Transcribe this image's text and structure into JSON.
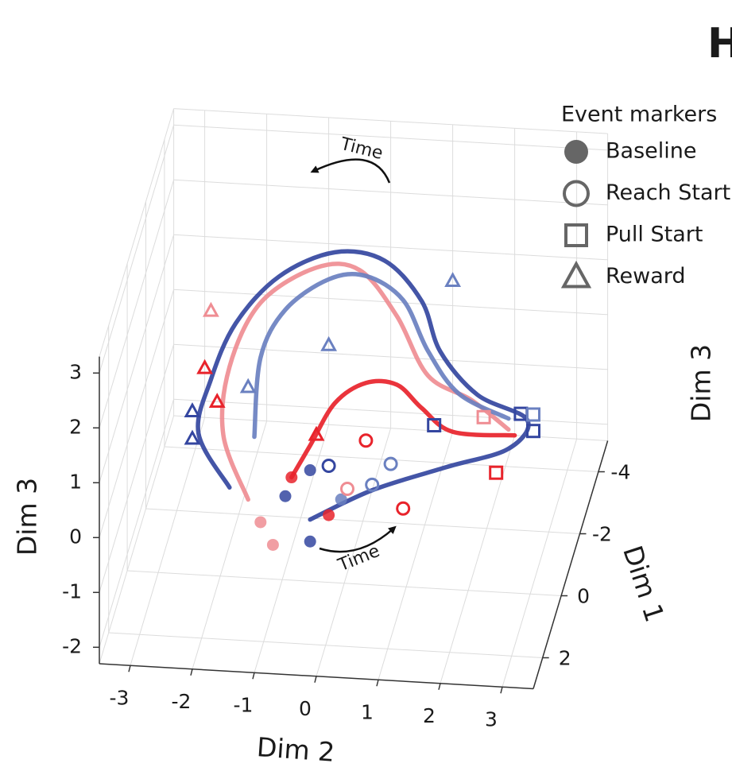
{
  "chart_data": {
    "type": "line3d",
    "xlabel": "Dim 2",
    "ylabel": "Dim 1",
    "zlabel": "Dim 3",
    "xlim": [
      -3.5,
      3.5
    ],
    "ylim": [
      -5,
      3
    ],
    "zlim": [
      -2.3,
      3.3
    ],
    "xticks": [
      -3,
      -2,
      -1,
      0,
      1,
      2,
      3
    ],
    "yticks": [
      -4,
      -2,
      0,
      2
    ],
    "zticks": [
      -2,
      -1,
      0,
      1,
      2,
      3
    ],
    "grid": true,
    "series": [
      {
        "color": "#ef8d93",
        "x": [
          -1.4,
          -2.1,
          -2.3,
          -1.8,
          -0.9,
          -0.2,
          0.4,
          1.2,
          1.9,
          2.5
        ],
        "y": [
          1,
          -1,
          -3,
          -3,
          -3,
          -3,
          -3,
          -1,
          -1,
          -1
        ],
        "z": [
          -0.3,
          -0.3,
          -0.2,
          1.0,
          1.7,
          1.7,
          0.9,
          1.0,
          0.6,
          0.1
        ]
      },
      {
        "color": "#6a80c0",
        "x": [
          -1.6,
          -1.8,
          -1.4,
          -0.7,
          -0.1,
          0.5,
          0.9,
          1.7,
          2.5
        ],
        "y": [
          -1,
          -3,
          -3,
          -3,
          -3,
          -3,
          -3,
          -1,
          -1
        ],
        "z": [
          -0.3,
          0.0,
          0.9,
          1.5,
          1.6,
          1.2,
          0.3,
          0.7,
          0.3
        ]
      },
      {
        "color": "#3446a0",
        "x": [
          -0.4,
          0.6,
          1.8,
          2.8,
          2.8,
          2.0,
          1.1,
          0.8,
          0.2,
          -0.6,
          -1.5,
          -2.2,
          -2.3,
          -2.5,
          -1.7
        ],
        "y": [
          1,
          1,
          1,
          1,
          -1,
          -1,
          -3,
          -3,
          -3,
          -3,
          -3,
          -3,
          -1,
          -1,
          1
        ],
        "z": [
          -0.6,
          0.0,
          0.5,
          0.9,
          0.3,
          0.7,
          0.3,
          1.2,
          1.9,
          2.0,
          1.5,
          0.6,
          0.7,
          -0.3,
          -0.1
        ]
      },
      {
        "color": "#e8232b",
        "x": [
          -1.0,
          -0.7,
          -0.3,
          0.2,
          0.7,
          1.1,
          1.6,
          2.6
        ],
        "y": [
          -1,
          -1,
          -1,
          -1,
          -1,
          -1,
          -1,
          -1
        ],
        "z": [
          -1.0,
          -0.4,
          0.4,
          0.8,
          0.8,
          0.4,
          0.0,
          0.0
        ]
      }
    ],
    "legend": {
      "title": "Event markers",
      "position": "top-right"
    },
    "events": [
      {
        "name": "Baseline",
        "shape": "filled-circle",
        "points": [
          {
            "x": -0.4,
            "y": 1,
            "z": 0.3,
            "color": "#3446a0"
          },
          {
            "x": -0.8,
            "y": 1,
            "z": -0.2,
            "color": "#3446a0"
          },
          {
            "x": -0.4,
            "y": 1,
            "z": -1.0,
            "color": "#3446a0"
          },
          {
            "x": -1.0,
            "y": 1,
            "z": -1.1,
            "color": "#ef8d93"
          },
          {
            "x": -1.2,
            "y": 1,
            "z": -0.7,
            "color": "#ef8d93"
          },
          {
            "x": -0.1,
            "y": 1,
            "z": -0.5,
            "color": "#e8232b"
          },
          {
            "x": -1.0,
            "y": -1,
            "z": -1.0,
            "color": "#e8232b"
          },
          {
            "x": 0.1,
            "y": 1,
            "z": -0.2,
            "color": "#6a80c0"
          }
        ]
      },
      {
        "name": "Reach Start",
        "shape": "circle",
        "points": [
          {
            "x": -0.1,
            "y": 1,
            "z": 0.4,
            "color": "#3446a0"
          },
          {
            "x": 0.5,
            "y": 1,
            "z": 0.9,
            "color": "#e8232b"
          },
          {
            "x": 1.1,
            "y": 1,
            "z": -0.3,
            "color": "#e8232b"
          },
          {
            "x": 0.6,
            "y": 1,
            "z": 0.1,
            "color": "#6a80c0"
          },
          {
            "x": 0.9,
            "y": 1,
            "z": 0.5,
            "color": "#6a80c0"
          },
          {
            "x": 0.2,
            "y": 1,
            "z": 0.0,
            "color": "#ef8d93"
          }
        ]
      },
      {
        "name": "Pull Start",
        "shape": "square",
        "points": [
          {
            "x": 2.9,
            "y": -1,
            "z": 0.1,
            "color": "#3446a0"
          },
          {
            "x": 2.7,
            "y": -1,
            "z": 0.4,
            "color": "#3446a0"
          },
          {
            "x": 2.3,
            "y": -1,
            "z": -0.7,
            "color": "#e8232b"
          },
          {
            "x": 2.9,
            "y": -1,
            "z": 0.4,
            "color": "#6a80c0"
          },
          {
            "x": 2.1,
            "y": -1,
            "z": 0.3,
            "color": "#ef8d93"
          },
          {
            "x": 1.3,
            "y": -1,
            "z": 0.1,
            "color": "#3446a0"
          }
        ]
      },
      {
        "name": "Reward",
        "shape": "triangle",
        "points": [
          {
            "x": -2.6,
            "y": -1,
            "z": -0.4,
            "color": "#3446a0"
          },
          {
            "x": -2.4,
            "y": -1,
            "z": 0.9,
            "color": "#e8232b"
          },
          {
            "x": -2.2,
            "y": -1,
            "z": 0.3,
            "color": "#e8232b"
          },
          {
            "x": -2.6,
            "y": -3,
            "z": 0.8,
            "color": "#ef8d93"
          },
          {
            "x": -0.7,
            "y": -3,
            "z": 0.3,
            "color": "#6a80c0"
          },
          {
            "x": 1.3,
            "y": -3,
            "z": 1.6,
            "color": "#6a80c0"
          },
          {
            "x": -0.6,
            "y": -1,
            "z": -0.2,
            "color": "#e8232b"
          },
          {
            "x": -1.7,
            "y": -1,
            "z": 0.6,
            "color": "#6a80c0"
          },
          {
            "x": -2.6,
            "y": -1,
            "z": 0.1,
            "color": "#3446a0"
          }
        ]
      }
    ],
    "annotations": [
      "Time",
      "Time"
    ]
  },
  "panel_label": "H",
  "next_panel": {
    "zlabel": "Dim 3"
  }
}
